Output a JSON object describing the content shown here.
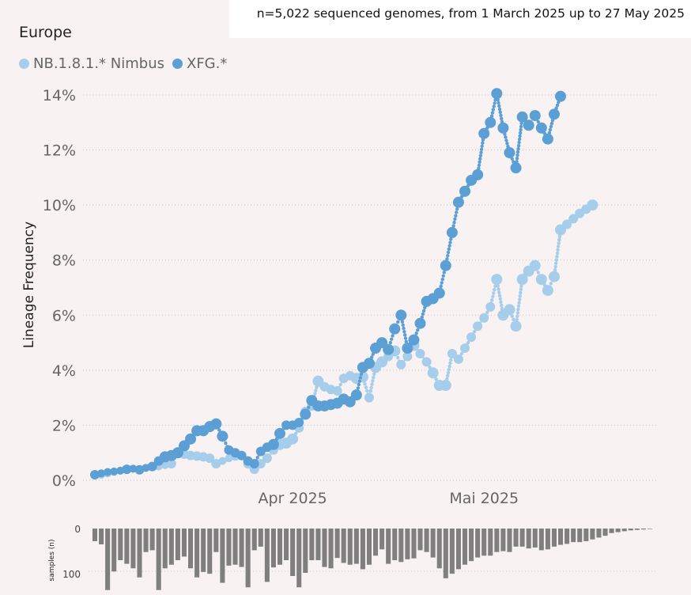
{
  "header": {
    "subtitle": "n=5,022 sequenced genomes, from 1 March 2025 up to 27 May 2025",
    "region": "Europe"
  },
  "colors": {
    "nimbus": "#a6cdea",
    "xfg": "#5b9fd5",
    "bars": "#7f7f7f",
    "background": "#f8f2f3"
  },
  "chart_data": [
    {
      "type": "line",
      "title": "Europe",
      "ylabel": "Lineage Frequency",
      "xlabel": "",
      "x_tick_labels": [
        {
          "date": "2025-04-01",
          "label": "Apr 2025"
        },
        {
          "date": "2025-05-01",
          "label": "Mai 2025"
        }
      ],
      "y_tick_labels": [
        "0%",
        "2%",
        "4%",
        "6%",
        "8%",
        "10%",
        "12%",
        "14%"
      ],
      "ylim": [
        0,
        14
      ],
      "grid": "horizontal dotted",
      "legend_placement": "top-left",
      "x": [
        "2025-03-01",
        "2025-03-02",
        "2025-03-03",
        "2025-03-04",
        "2025-03-05",
        "2025-03-06",
        "2025-03-07",
        "2025-03-08",
        "2025-03-09",
        "2025-03-10",
        "2025-03-11",
        "2025-03-12",
        "2025-03-13",
        "2025-03-14",
        "2025-03-15",
        "2025-03-16",
        "2025-03-17",
        "2025-03-18",
        "2025-03-19",
        "2025-03-20",
        "2025-03-21",
        "2025-03-22",
        "2025-03-23",
        "2025-03-24",
        "2025-03-25",
        "2025-03-26",
        "2025-03-27",
        "2025-03-28",
        "2025-03-29",
        "2025-03-30",
        "2025-03-31",
        "2025-04-01",
        "2025-04-02",
        "2025-04-03",
        "2025-04-04",
        "2025-04-05",
        "2025-04-06",
        "2025-04-07",
        "2025-04-08",
        "2025-04-09",
        "2025-04-10",
        "2025-04-11",
        "2025-04-12",
        "2025-04-13",
        "2025-04-14",
        "2025-04-15",
        "2025-04-16",
        "2025-04-17",
        "2025-04-18",
        "2025-04-19",
        "2025-04-20",
        "2025-04-21",
        "2025-04-22",
        "2025-04-23",
        "2025-04-24",
        "2025-04-25",
        "2025-04-26",
        "2025-04-27",
        "2025-04-28",
        "2025-04-29",
        "2025-04-30",
        "2025-05-01",
        "2025-05-02",
        "2025-05-03",
        "2025-05-04",
        "2025-05-05",
        "2025-05-06",
        "2025-05-07",
        "2025-05-08",
        "2025-05-09",
        "2025-05-10",
        "2025-05-11",
        "2025-05-12",
        "2025-05-13",
        "2025-05-14",
        "2025-05-15",
        "2025-05-16",
        "2025-05-17",
        "2025-05-18",
        "2025-05-19",
        "2025-05-20",
        "2025-05-21",
        "2025-05-22",
        "2025-05-23",
        "2025-05-24",
        "2025-05-25",
        "2025-05-26",
        "2025-05-27"
      ],
      "series": [
        {
          "name": "NB.1.8.1.* Nimbus",
          "values": [
            0.2,
            0.2,
            0.25,
            0.3,
            0.35,
            0.4,
            0.42,
            0.4,
            0.45,
            0.5,
            0.5,
            0.55,
            0.6,
            1.0,
            0.95,
            0.9,
            0.88,
            0.85,
            0.8,
            0.6,
            0.7,
            0.8,
            0.85,
            0.9,
            0.6,
            0.4,
            0.6,
            0.8,
            1.1,
            1.3,
            1.35,
            1.5,
            1.9,
            2.5,
            2.7,
            3.6,
            3.4,
            3.3,
            3.25,
            3.7,
            3.8,
            3.7,
            3.75,
            3.0,
            4.1,
            4.3,
            4.5,
            4.7,
            4.2,
            4.5,
            4.9,
            4.6,
            4.3,
            3.9,
            3.45,
            3.45,
            4.6,
            4.4,
            4.8,
            5.2,
            5.6,
            5.9,
            6.3,
            7.3,
            6.0,
            6.2,
            5.6,
            7.3,
            7.6,
            7.8,
            7.3,
            6.9,
            7.4,
            9.1,
            9.3,
            9.5,
            9.7,
            9.85,
            10.0,
            null,
            null,
            null,
            null,
            null,
            null,
            null,
            null,
            null
          ],
          "marker_size": [
            5,
            5,
            5,
            5,
            5,
            5,
            5,
            5,
            5,
            5,
            5,
            5,
            6,
            7,
            6,
            6,
            6,
            6,
            6,
            6,
            5,
            5,
            5,
            6,
            6,
            6,
            6,
            6,
            6,
            7,
            7,
            7,
            6,
            6,
            6,
            7,
            6,
            6,
            6,
            6,
            6,
            7,
            7,
            6,
            7,
            7,
            6,
            7,
            6,
            6,
            7,
            6,
            6,
            7,
            7,
            7,
            6,
            6,
            6,
            6,
            6,
            6,
            6,
            7,
            7,
            7,
            7,
            7,
            7,
            7,
            7,
            7,
            7,
            7,
            6,
            6,
            6,
            6,
            7,
            5,
            5,
            5,
            5,
            5,
            5,
            5,
            5,
            5
          ]
        },
        {
          "name": "XFG.*",
          "values": [
            0.2,
            0.25,
            0.3,
            0.32,
            0.35,
            0.4,
            0.42,
            0.38,
            0.45,
            0.5,
            0.7,
            0.85,
            0.9,
            1.0,
            1.25,
            1.5,
            1.8,
            1.8,
            1.95,
            2.05,
            1.6,
            1.1,
            1.0,
            0.9,
            0.7,
            0.6,
            1.05,
            1.2,
            1.3,
            1.7,
            2.0,
            2.0,
            2.1,
            2.4,
            2.9,
            2.7,
            2.7,
            2.75,
            2.8,
            2.95,
            2.85,
            3.1,
            4.1,
            4.25,
            4.8,
            5.0,
            4.75,
            5.5,
            6.0,
            4.8,
            5.1,
            5.7,
            6.5,
            6.6,
            6.8,
            7.8,
            9.0,
            10.1,
            10.5,
            10.9,
            11.1,
            12.6,
            13.0,
            14.05,
            12.8,
            11.9,
            11.35,
            13.2,
            12.9,
            13.25,
            12.8,
            12.4,
            13.3,
            13.95,
            null,
            null,
            null,
            null,
            null,
            null,
            null,
            null,
            null,
            null,
            null,
            null,
            null,
            null
          ],
          "marker_size": [
            6,
            5,
            5,
            5,
            5,
            6,
            5,
            6,
            5,
            6,
            6,
            7,
            7,
            7,
            7,
            7,
            7,
            7,
            7,
            7,
            7,
            6,
            6,
            6,
            6,
            6,
            6,
            6,
            7,
            7,
            6,
            6,
            6,
            7,
            7,
            7,
            7,
            7,
            7,
            7,
            7,
            7,
            7,
            7,
            7,
            7,
            7,
            7,
            7,
            7,
            7,
            7,
            7,
            7,
            7,
            7,
            7,
            7,
            7,
            7,
            7,
            7,
            7,
            7,
            7,
            7,
            7,
            7,
            7,
            7,
            7,
            7,
            7,
            7,
            7,
            7,
            7,
            7,
            7,
            5,
            5,
            5,
            5,
            5,
            5,
            5,
            5,
            5
          ]
        }
      ]
    },
    {
      "type": "bar",
      "ylabel": "samples (n)",
      "y_tick_labels": [
        "0",
        "100"
      ],
      "ylim": [
        0,
        140
      ],
      "orientation": "downward",
      "values": [
        28,
        35,
        136,
        95,
        70,
        78,
        88,
        108,
        52,
        48,
        136,
        88,
        80,
        70,
        62,
        88,
        108,
        96,
        100,
        52,
        120,
        82,
        80,
        85,
        130,
        48,
        40,
        118,
        86,
        80,
        70,
        105,
        130,
        98,
        70,
        70,
        85,
        88,
        65,
        76,
        80,
        78,
        90,
        80,
        60,
        46,
        78,
        70,
        74,
        68,
        66,
        48,
        52,
        64,
        88,
        110,
        100,
        90,
        80,
        72,
        64,
        60,
        60,
        52,
        50,
        52,
        40,
        40,
        44,
        42,
        48,
        46,
        40,
        36,
        34,
        30,
        30,
        28,
        24,
        20,
        16,
        10,
        8,
        6,
        4,
        3,
        2,
        1
      ]
    }
  ]
}
